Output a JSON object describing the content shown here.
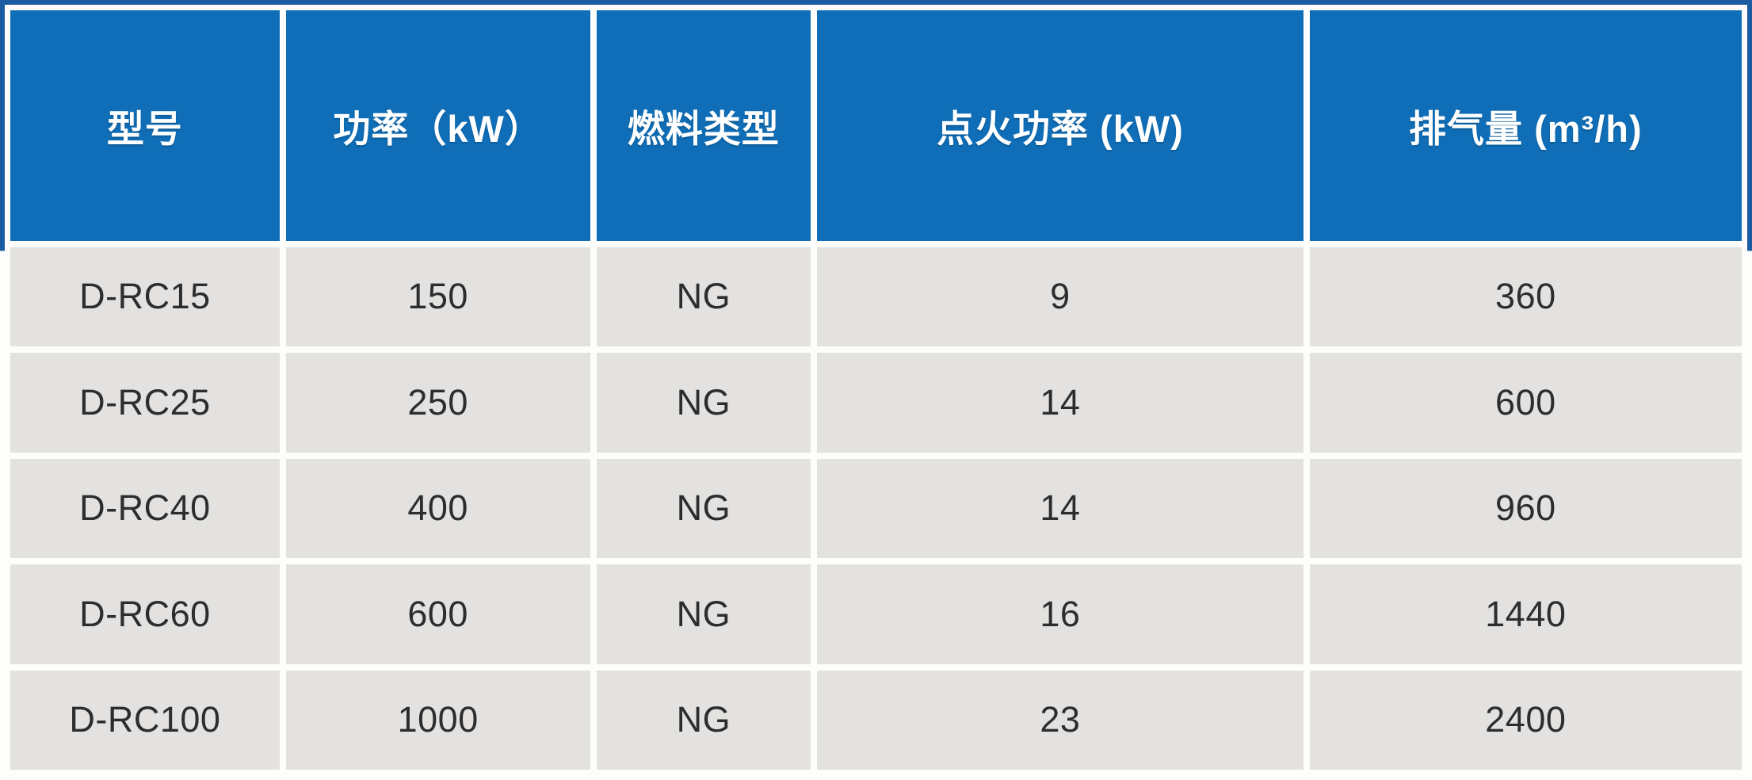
{
  "table": {
    "title": "burner-spec-table",
    "columns": [
      "型号",
      "功率（kW）",
      "燃料类型",
      "点火功率 (kW)",
      "排气量 (m³/h)"
    ],
    "rows": [
      [
        "D-RC15",
        "150",
        "NG",
        "9",
        "360"
      ],
      [
        "D-RC25",
        "250",
        "NG",
        "14",
        "600"
      ],
      [
        "D-RC40",
        "400",
        "NG",
        "14",
        "960"
      ],
      [
        "D-RC60",
        "600",
        "NG",
        "16",
        "1440"
      ],
      [
        "D-RC100",
        "1000",
        "NG",
        "23",
        "2400"
      ]
    ],
    "colors": {
      "header_background": "#0f6eb7",
      "header_text": "#ffffff",
      "frame_navy": "#1c5ca3",
      "cell_background": "#e3e2e0",
      "cell_text": "#2d2d2d",
      "gutter": "#fdfdfc",
      "page_background": "#f6f1ec"
    }
  }
}
